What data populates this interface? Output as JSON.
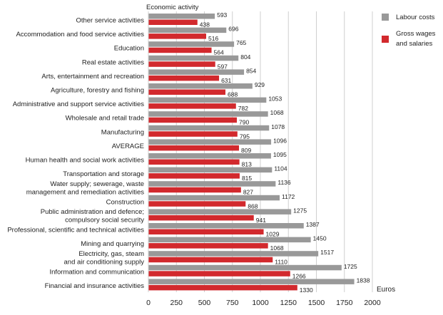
{
  "chart_data": {
    "type": "bar",
    "orientation": "horizontal",
    "title": "",
    "ylabel": "Economic activity",
    "xlabel": "Euros",
    "xlim": [
      0,
      2000
    ],
    "xticks": [
      0,
      250,
      500,
      750,
      1000,
      1250,
      1500,
      1750,
      2000
    ],
    "grid": true,
    "legend_position": "top-right",
    "categories": [
      "Other service activities",
      "Accommodation and food service activities",
      "Education",
      "Real estate activities",
      "Arts, entertainment and recreation",
      "Agriculture, forestry and fishing",
      "Administrative and support service activities",
      "Wholesale and retail trade",
      "Manufacturing",
      "AVERAGE",
      "Human health and social work activities",
      "Transportation and storage",
      "Water supply; sewerage, waste\nmanagement and remediation activities",
      "Construction",
      "Public administration and defence;\ncompulsory social security",
      "Professional, scientific and technical activities",
      "Mining and quarrying",
      "Electricity, gas, steam\nand air conditioning supply",
      "Information and communication",
      "Financial and insurance activities"
    ],
    "series": [
      {
        "name": "Labour costs",
        "color": "#999999",
        "values": [
          593,
          696,
          765,
          804,
          854,
          929,
          1053,
          1068,
          1078,
          1096,
          1095,
          1104,
          1136,
          1172,
          1275,
          1387,
          1450,
          1517,
          1725,
          1838
        ]
      },
      {
        "name": "Gross wages\nand salaries",
        "color": "#d2292d",
        "values": [
          438,
          516,
          564,
          597,
          631,
          688,
          782,
          790,
          795,
          809,
          813,
          815,
          827,
          868,
          941,
          1029,
          1068,
          1110,
          1266,
          1330
        ]
      }
    ]
  }
}
